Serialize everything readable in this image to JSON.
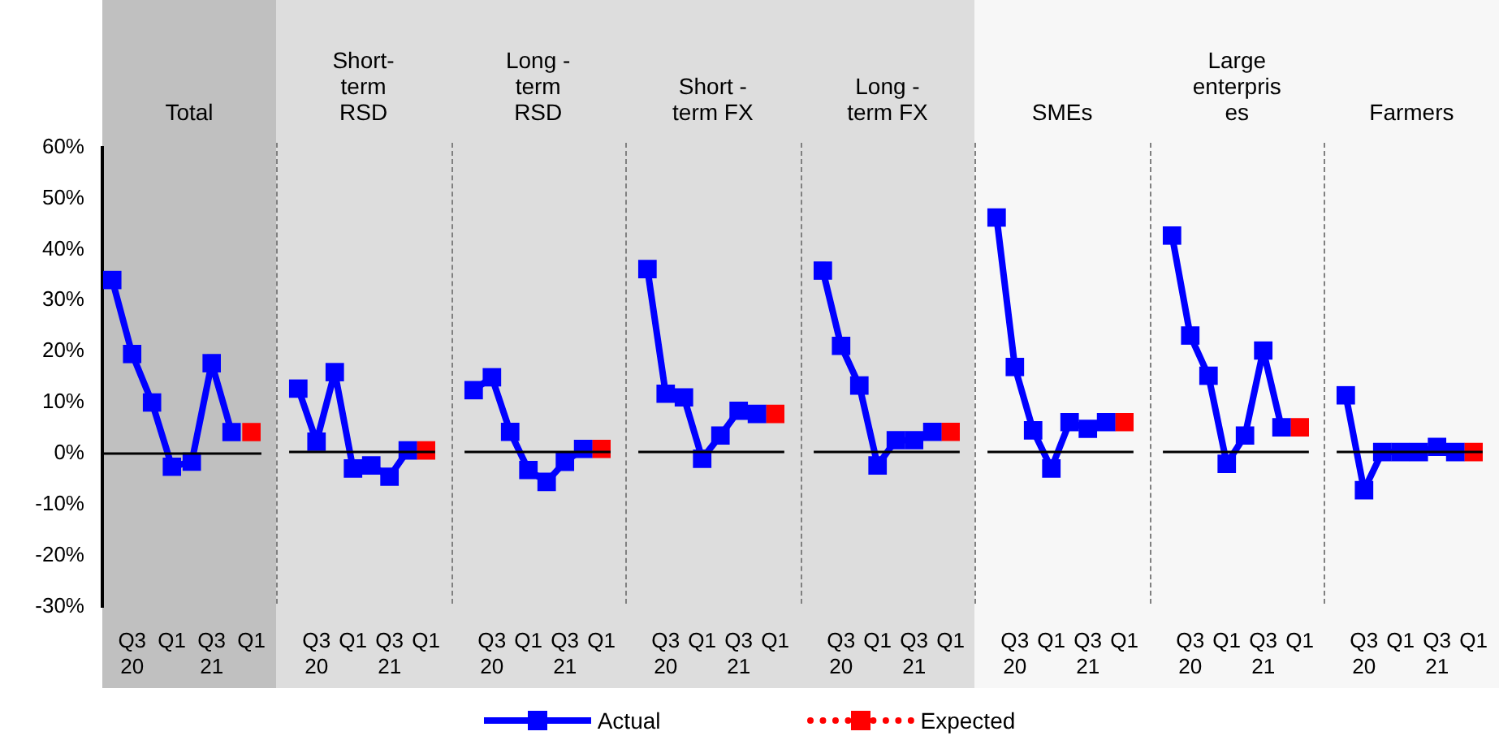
{
  "chart_data": [
    {
      "type": "line",
      "title": "Total",
      "categories": [
        null,
        "Q3 20",
        null,
        "Q1",
        null,
        "Q3 21",
        null,
        "Q1"
      ],
      "series": [
        {
          "name": "Actual",
          "color": "#0000ff",
          "values": [
            34,
            19.5,
            10,
            -2.6,
            -1.6,
            17.7,
            4.2,
            null
          ]
        },
        {
          "name": "Expected",
          "color": "#ff0000",
          "line_style": "dotted",
          "values": [
            null,
            null,
            null,
            null,
            null,
            null,
            null,
            4.2
          ]
        }
      ],
      "ylim": [
        -30,
        60
      ],
      "yticks": [
        {
          "value": -30,
          "label": "-30%"
        },
        {
          "value": -20,
          "label": "-20%"
        },
        {
          "value": -10,
          "label": "-10%"
        },
        {
          "value": 0,
          "label": "0%"
        },
        {
          "value": 10,
          "label": "10%"
        },
        {
          "value": 20,
          "label": "20%"
        },
        {
          "value": 30,
          "label": "30%"
        },
        {
          "value": 40,
          "label": "40%"
        },
        {
          "value": 50,
          "label": "50%"
        },
        {
          "value": 60,
          "label": "60%"
        }
      ],
      "marker": "square",
      "legend": "bottom",
      "ref_lines": [
        {
          "axis": "y",
          "value": 0,
          "color": "#000000"
        }
      ]
    },
    {
      "type": "line",
      "title": "Short-term RSD",
      "categories": [
        null,
        "Q3 20",
        null,
        "Q1",
        null,
        "Q3 21",
        null,
        "Q1"
      ],
      "series": [
        {
          "color": "#0000ff",
          "values": [
            12.3,
            2,
            15.5,
            -3.2,
            -2.6,
            -4.8,
            0.3,
            null
          ]
        },
        {
          "color": "#ff0000",
          "line_style": "dotted",
          "values": [
            null,
            null,
            null,
            null,
            null,
            null,
            null,
            0.3
          ]
        }
      ],
      "ylim": [
        -30,
        60
      ],
      "marker": "square",
      "tick_labels": "x",
      "ref_lines": [
        {
          "axis": "y",
          "value": 0,
          "color": "#000000"
        }
      ]
    },
    {
      "type": "line",
      "title": "Long - term RSD",
      "categories": [
        null,
        "Q3 20",
        null,
        "Q1",
        null,
        "Q3 21",
        null,
        "Q1"
      ],
      "series": [
        {
          "color": "#0000ff",
          "values": [
            12,
            14.5,
            3.9,
            -3.5,
            -5.8,
            -1.9,
            0.6,
            null
          ]
        },
        {
          "color": "#ff0000",
          "line_style": "dotted",
          "values": [
            null,
            null,
            null,
            null,
            null,
            null,
            null,
            0.6
          ]
        }
      ],
      "ylim": [
        -30,
        60
      ],
      "marker": "square",
      "tick_labels": "x",
      "ref_lines": [
        {
          "axis": "y",
          "value": 0,
          "color": "#000000"
        }
      ]
    },
    {
      "type": "line",
      "title": "Short -term FX",
      "categories": [
        null,
        "Q3 20",
        null,
        "Q1",
        null,
        "Q3 21",
        null,
        "Q1"
      ],
      "series": [
        {
          "color": "#0000ff",
          "values": [
            35.5,
            11.3,
            10.6,
            -1.3,
            3.2,
            8,
            7.4,
            null
          ]
        },
        {
          "color": "#ff0000",
          "line_style": "dotted",
          "values": [
            null,
            null,
            null,
            null,
            null,
            null,
            null,
            7.4
          ]
        }
      ],
      "ylim": [
        -30,
        60
      ],
      "marker": "square",
      "tick_labels": "x",
      "ref_lines": [
        {
          "axis": "y",
          "value": 0,
          "color": "#000000"
        }
      ]
    },
    {
      "type": "line",
      "title": "Long -term FX",
      "categories": [
        null,
        "Q3 20",
        null,
        "Q1",
        null,
        "Q3 21",
        null,
        "Q1"
      ],
      "series": [
        {
          "color": "#0000ff",
          "values": [
            35.2,
            20.6,
            12.9,
            -2.6,
            2.3,
            2.3,
            3.9,
            null
          ]
        },
        {
          "color": "#ff0000",
          "line_style": "dotted",
          "values": [
            null,
            null,
            null,
            null,
            null,
            null,
            null,
            3.9
          ]
        }
      ],
      "ylim": [
        -30,
        60
      ],
      "marker": "square",
      "tick_labels": "x",
      "ref_lines": [
        {
          "axis": "y",
          "value": 0,
          "color": "#000000"
        }
      ]
    },
    {
      "type": "line",
      "title": "SMEs",
      "categories": [
        null,
        "Q3 20",
        null,
        "Q1",
        null,
        "Q3 21",
        null,
        "Q1"
      ],
      "series": [
        {
          "color": "#0000ff",
          "values": [
            45.5,
            16.5,
            4.2,
            -3.2,
            5.8,
            4.5,
            5.8,
            null
          ]
        },
        {
          "color": "#ff0000",
          "line_style": "dotted",
          "values": [
            null,
            null,
            null,
            null,
            null,
            null,
            null,
            5.8
          ]
        }
      ],
      "ylim": [
        -30,
        60
      ],
      "marker": "square",
      "tick_labels": "x",
      "ref_lines": [
        {
          "axis": "y",
          "value": 0,
          "color": "#000000"
        }
      ]
    },
    {
      "type": "line",
      "title": "Large enterprises",
      "categories": [
        null,
        "Q3 20",
        null,
        "Q1",
        null,
        "Q3 21",
        null,
        "Q1"
      ],
      "series": [
        {
          "color": "#0000ff",
          "values": [
            42,
            22.6,
            14.8,
            -2.3,
            3.2,
            19.7,
            4.8,
            null
          ]
        },
        {
          "color": "#ff0000",
          "line_style": "dotted",
          "values": [
            null,
            null,
            null,
            null,
            null,
            null,
            null,
            4.8
          ]
        }
      ],
      "ylim": [
        -30,
        60
      ],
      "marker": "square",
      "tick_labels": "x",
      "ref_lines": [
        {
          "axis": "y",
          "value": 0,
          "color": "#000000"
        }
      ]
    },
    {
      "type": "line",
      "title": "Farmers",
      "categories": [
        null,
        "Q3 20",
        null,
        "Q1",
        null,
        "Q3 21",
        null,
        "Q1"
      ],
      "series": [
        {
          "color": "#0000ff",
          "values": [
            11,
            -7.4,
            0,
            0,
            0,
            1,
            0,
            null
          ]
        },
        {
          "color": "#ff0000",
          "line_style": "dotted",
          "values": [
            null,
            null,
            null,
            null,
            null,
            null,
            null,
            0
          ]
        }
      ],
      "ylim": [
        -30,
        60
      ],
      "marker": "square",
      "tick_labels": "x",
      "ref_lines": [
        {
          "axis": "y",
          "value": 0,
          "color": "#000000"
        }
      ]
    }
  ]
}
